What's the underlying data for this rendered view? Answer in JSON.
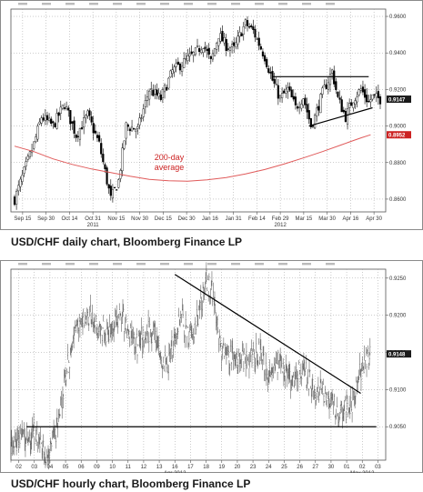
{
  "chart_data": [
    {
      "type": "candlestick",
      "caption": "USD/CHF daily chart, Bloomberg Finance LP",
      "x_ticks": [
        "Sep 15",
        "Sep 30",
        "Oct 14",
        "Oct 31",
        "Nov 15",
        "Nov 30",
        "Dec 15",
        "Dec 30",
        "Jan 16",
        "Jan 31",
        "Feb 14",
        "Feb 29",
        "Mar 15",
        "Mar 30",
        "Apr 16",
        "Apr 30"
      ],
      "x_subticks": [
        {
          "label": "2011",
          "under": "Oct 31"
        },
        {
          "label": "2012",
          "under": "Feb 29"
        }
      ],
      "y_ticks": [
        "0.9600",
        "0.9400",
        "0.9200",
        "0.9000",
        "0.8800",
        "0.8600"
      ],
      "ylim": [
        0.853,
        0.964
      ],
      "grid": true,
      "price_tags": [
        {
          "label": "0.9147",
          "value": 0.9147,
          "color": "#1a1a1a"
        },
        {
          "label": "0.8952",
          "value": 0.8952,
          "color": "#cc2222"
        }
      ],
      "ma_annotation": {
        "line1": "200-day",
        "line2": "average",
        "color": "#cc2222"
      },
      "ma_series": {
        "name": "200-day average",
        "color": "#e05a5a",
        "points": [
          [
            0,
            0.889
          ],
          [
            10,
            0.886
          ],
          [
            20,
            0.882
          ],
          [
            30,
            0.879
          ],
          [
            40,
            0.8765
          ],
          [
            50,
            0.8745
          ],
          [
            60,
            0.8725
          ],
          [
            70,
            0.8708
          ],
          [
            80,
            0.87
          ],
          [
            90,
            0.8698
          ],
          [
            100,
            0.8705
          ],
          [
            110,
            0.8718
          ],
          [
            120,
            0.8738
          ],
          [
            130,
            0.8762
          ],
          [
            140,
            0.8792
          ],
          [
            150,
            0.8825
          ],
          [
            160,
            0.886
          ],
          [
            170,
            0.8898
          ],
          [
            180,
            0.8935
          ],
          [
            185,
            0.8952
          ]
        ]
      },
      "price_path": [
        [
          0,
          0.86
        ],
        [
          5,
          0.875
        ],
        [
          10,
          0.89
        ],
        [
          14,
          0.905
        ],
        [
          20,
          0.9
        ],
        [
          26,
          0.912
        ],
        [
          32,
          0.895
        ],
        [
          38,
          0.906
        ],
        [
          44,
          0.89
        ],
        [
          50,
          0.86
        ],
        [
          54,
          0.87
        ],
        [
          58,
          0.9
        ],
        [
          64,
          0.898
        ],
        [
          70,
          0.92
        ],
        [
          76,
          0.915
        ],
        [
          82,
          0.93
        ],
        [
          88,
          0.935
        ],
        [
          94,
          0.94
        ],
        [
          98,
          0.945
        ],
        [
          102,
          0.935
        ],
        [
          106,
          0.95
        ],
        [
          110,
          0.944
        ],
        [
          114,
          0.942
        ],
        [
          118,
          0.952
        ],
        [
          120,
          0.956
        ],
        [
          124,
          0.952
        ],
        [
          127,
          0.945
        ],
        [
          130,
          0.938
        ],
        [
          134,
          0.925
        ],
        [
          138,
          0.915
        ],
        [
          142,
          0.92
        ],
        [
          146,
          0.91
        ],
        [
          150,
          0.916
        ],
        [
          154,
          0.9
        ],
        [
          156,
          0.905
        ],
        [
          160,
          0.918
        ],
        [
          163,
          0.925
        ],
        [
          165,
          0.93
        ],
        [
          168,
          0.915
        ],
        [
          172,
          0.905
        ],
        [
          176,
          0.915
        ],
        [
          180,
          0.92
        ],
        [
          184,
          0.913
        ],
        [
          186,
          0.916
        ],
        [
          190,
          0.9147
        ]
      ],
      "trendlines": [
        {
          "from": [
            134,
            0.927
          ],
          "to": [
            184,
            0.927
          ]
        },
        {
          "from": [
            153,
            0.9
          ],
          "to": [
            186,
            0.91
          ]
        }
      ]
    },
    {
      "type": "line",
      "caption": "USD/CHF hourly chart, Bloomberg Finance LP",
      "x_ticks": [
        "02",
        "03",
        "04",
        "05",
        "06",
        "09",
        "10",
        "11",
        "12",
        "13",
        "16",
        "17",
        "18",
        "19",
        "20",
        "23",
        "24",
        "25",
        "26",
        "27",
        "30",
        "01",
        "02",
        "03"
      ],
      "x_subticks": [
        {
          "label": "Apr 2012",
          "under": "16"
        },
        {
          "label": "May 2012",
          "under": "02"
        }
      ],
      "y_ticks": [
        "0.9250",
        "0.9200",
        "0.9150",
        "0.9100",
        "0.9050"
      ],
      "ylim": [
        0.9005,
        0.9262
      ],
      "grid": true,
      "price_tags": [
        {
          "label": "0.9148",
          "value": 0.9148,
          "color": "#1a1a1a"
        }
      ],
      "price_path": [
        [
          0,
          0.903
        ],
        [
          1.5,
          0.9045
        ],
        [
          2.2,
          0.901
        ],
        [
          3,
          0.905
        ],
        [
          3.6,
          0.913
        ],
        [
          4.2,
          0.9185
        ],
        [
          5,
          0.92
        ],
        [
          6,
          0.9175
        ],
        [
          7,
          0.92
        ],
        [
          8,
          0.916
        ],
        [
          9,
          0.918
        ],
        [
          10,
          0.913
        ],
        [
          10.8,
          0.92
        ],
        [
          11.4,
          0.917
        ],
        [
          12,
          0.92
        ],
        [
          12.5,
          0.9245
        ],
        [
          13,
          0.923
        ],
        [
          13.4,
          0.9155
        ],
        [
          14,
          0.9145
        ],
        [
          15,
          0.914
        ],
        [
          16,
          0.915
        ],
        [
          16.5,
          0.912
        ],
        [
          17.2,
          0.913
        ],
        [
          18,
          0.911
        ],
        [
          18.8,
          0.913
        ],
        [
          19.5,
          0.909
        ],
        [
          20,
          0.91
        ],
        [
          20.5,
          0.9085
        ],
        [
          21,
          0.907
        ],
        [
          21.4,
          0.908
        ],
        [
          21.7,
          0.907
        ],
        [
          22.2,
          0.911
        ],
        [
          22.7,
          0.914
        ],
        [
          23,
          0.9148
        ]
      ],
      "trendlines": [
        {
          "from": [
            10.5,
            0.9255
          ],
          "to": [
            22.4,
            0.9095
          ]
        },
        {
          "from": [
            1,
            0.905
          ],
          "to": [
            23.4,
            0.905
          ]
        }
      ]
    }
  ]
}
